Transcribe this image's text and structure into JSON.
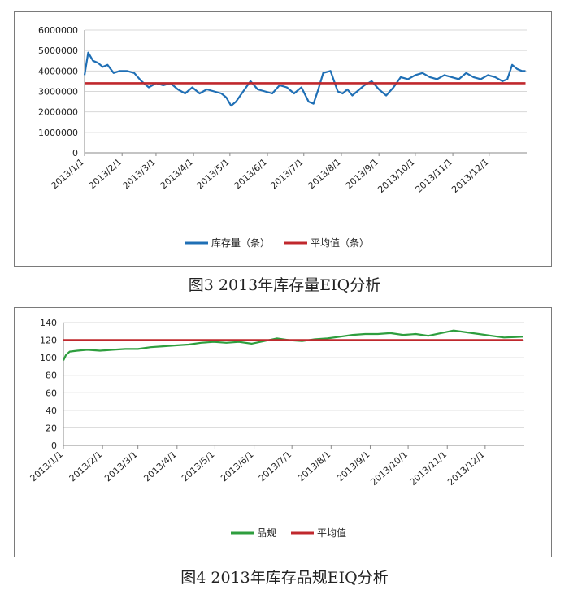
{
  "chart_data": [
    {
      "type": "line",
      "title": "",
      "ylim": [
        0,
        6000000
      ],
      "yticks": [
        0,
        1000000,
        2000000,
        3000000,
        4000000,
        5000000,
        6000000
      ],
      "ytick_labels": [
        "0",
        "1000000",
        "2000000",
        "3000000",
        "4000000",
        "5000000",
        "6000000"
      ],
      "categories": [
        "2013/1/1",
        "2013/2/1",
        "2013/3/1",
        "2013/4/1",
        "2013/5/1",
        "2013/6/1",
        "2013/7/1",
        "2013/8/1",
        "2013/9/1",
        "2013/10/1",
        "2013/11/1",
        "2013/12/1"
      ],
      "legend_position": "bottom",
      "series": [
        {
          "name": "库存量（条）",
          "color": "#1f6fb5",
          "x": [
            1,
            4,
            8,
            12,
            16,
            20,
            25,
            30,
            36,
            42,
            48,
            54,
            60,
            66,
            72,
            78,
            84,
            90,
            96,
            102,
            108,
            114,
            118,
            122,
            126,
            132,
            138,
            144,
            150,
            156,
            162,
            168,
            174,
            180,
            186,
            190,
            194,
            198,
            204,
            210,
            214,
            218,
            222,
            226,
            232,
            238,
            244,
            250,
            256,
            262,
            268,
            274,
            280,
            286,
            292,
            298,
            304,
            310,
            316,
            322,
            328,
            334,
            340,
            346,
            350,
            354,
            358,
            362,
            365
          ],
          "values": [
            3800000,
            4900000,
            4500000,
            4400000,
            4200000,
            4300000,
            3900000,
            4000000,
            4000000,
            3900000,
            3500000,
            3200000,
            3400000,
            3300000,
            3400000,
            3100000,
            2900000,
            3200000,
            2900000,
            3100000,
            3000000,
            2900000,
            2700000,
            2300000,
            2500000,
            3000000,
            3500000,
            3100000,
            3000000,
            2900000,
            3300000,
            3200000,
            2900000,
            3200000,
            2500000,
            2400000,
            3100000,
            3900000,
            4000000,
            3000000,
            2900000,
            3100000,
            2800000,
            3000000,
            3300000,
            3500000,
            3100000,
            2800000,
            3200000,
            3700000,
            3600000,
            3800000,
            3900000,
            3700000,
            3600000,
            3800000,
            3700000,
            3600000,
            3900000,
            3700000,
            3600000,
            3800000,
            3700000,
            3500000,
            3600000,
            4300000,
            4100000,
            4000000,
            4000000
          ]
        },
        {
          "name": "平均值（条）",
          "color": "#c0282d",
          "x": [
            1,
            365
          ],
          "values": [
            3400000,
            3400000
          ]
        }
      ],
      "caption": "图3   2013年库存量EIQ分析"
    },
    {
      "type": "line",
      "title": "",
      "ylim": [
        0,
        140
      ],
      "yticks": [
        0,
        20,
        40,
        60,
        80,
        100,
        120,
        140
      ],
      "ytick_labels": [
        "0",
        "20",
        "40",
        "60",
        "80",
        "100",
        "120",
        "140"
      ],
      "categories": [
        "2013/1/1",
        "2013/2/1",
        "2013/3/1",
        "2013/4/1",
        "2013/5/1",
        "2013/6/1",
        "2013/7/1",
        "2013/8/1",
        "2013/9/1",
        "2013/10/1",
        "2013/11/1",
        "2013/12/1"
      ],
      "legend_position": "bottom",
      "series": [
        {
          "name": "品规",
          "color": "#2e9e3e",
          "x": [
            1,
            3,
            6,
            12,
            20,
            30,
            40,
            50,
            60,
            70,
            80,
            90,
            100,
            110,
            120,
            130,
            140,
            150,
            160,
            170,
            180,
            190,
            200,
            210,
            220,
            230,
            240,
            250,
            260,
            270,
            280,
            290,
            300,
            310,
            320,
            330,
            340,
            350,
            365
          ],
          "values": [
            97,
            103,
            107,
            108,
            109,
            108,
            109,
            110,
            110,
            112,
            113,
            114,
            115,
            117,
            118,
            117,
            118,
            116,
            119,
            122,
            120,
            119,
            121,
            122,
            124,
            126,
            127,
            127,
            128,
            126,
            127,
            125,
            128,
            131,
            129,
            127,
            125,
            123,
            124
          ]
        },
        {
          "name": "平均值",
          "color": "#c0282d",
          "x": [
            1,
            365
          ],
          "values": [
            120,
            120
          ]
        }
      ],
      "caption": "图4   2013年库存品规EIQ分析"
    }
  ]
}
